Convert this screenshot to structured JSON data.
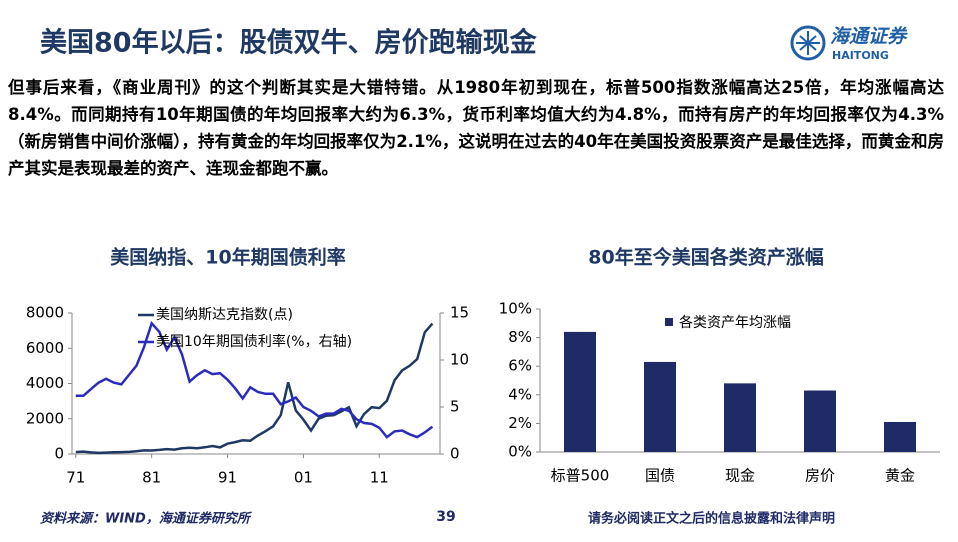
{
  "header": {
    "title": "美国80年以后：股债双牛、房价跑输现金",
    "logo": "海通证券",
    "logo_en": "HAITONG"
  },
  "body": "但事后来看，《商业周刊》的这个判断其实是大错特错。从1980年初到现在，标普500指数涨幅高达25倍，年均涨幅高达8.4%。而同期持有10年期国债的年均回报率大约为6.3%，货币利率均值大约为4.8%，而持有房产的年均回报率仅为4.3%（新房销售中间价涨幅），持有黄金的年均回报率仅为2.1%，这说明在过去的40年在美国投资股票资产是最佳选择，而黄金和房产其实是表现最差的资产、连现金都跑不赢。",
  "chart_data": [
    {
      "type": "line",
      "title": "美国纳指、10年期国债利率",
      "x": [
        1971,
        1972,
        1973,
        1974,
        1975,
        1976,
        1977,
        1978,
        1979,
        1980,
        1981,
        1982,
        1983,
        1984,
        1985,
        1986,
        1987,
        1988,
        1989,
        1990,
        1991,
        1992,
        1993,
        1994,
        1995,
        1996,
        1997,
        1998,
        1999,
        2000,
        2001,
        2002,
        2003,
        2004,
        2005,
        2006,
        2007,
        2008,
        2009,
        2010,
        2011,
        2012,
        2013,
        2014,
        2015,
        2016,
        2017,
        2018
      ],
      "series": [
        {
          "name": "美国纳斯达克指数(点)",
          "color": "#1f3864",
          "values": [
            114,
            134,
            92,
            60,
            78,
            98,
            105,
            118,
            151,
            202,
            196,
            232,
            279,
            247,
            325,
            349,
            330,
            381,
            454,
            374,
            586,
            677,
            777,
            752,
            1052,
            1291,
            1570,
            2193,
            4069,
            2471,
            1950,
            1336,
            2003,
            2175,
            2205,
            2415,
            2652,
            1577,
            2269,
            2653,
            2605,
            3020,
            4177,
            4736,
            5007,
            5383,
            6903,
            7400
          ]
        },
        {
          "name": "美国10年期国债利率(%，右轴)",
          "color": "#2b2bbd",
          "axis": "y2",
          "values": [
            6.2,
            6.2,
            6.9,
            7.6,
            8.0,
            7.6,
            7.4,
            8.4,
            9.4,
            11.4,
            13.9,
            13.0,
            11.1,
            12.4,
            10.6,
            7.7,
            8.4,
            8.9,
            8.5,
            8.6,
            7.9,
            7.0,
            5.9,
            7.1,
            6.6,
            6.4,
            6.4,
            5.3,
            5.6,
            6.0,
            5.0,
            4.6,
            4.0,
            4.3,
            4.3,
            4.8,
            4.6,
            3.7,
            3.3,
            3.2,
            2.8,
            1.8,
            2.4,
            2.5,
            2.1,
            1.8,
            2.3,
            2.9
          ]
        }
      ],
      "xlim": [
        1970.5,
        2019
      ],
      "xticks": [
        {
          "value": 1971,
          "label": "71"
        },
        {
          "value": 1981,
          "label": "81"
        },
        {
          "value": 1991,
          "label": "91"
        },
        {
          "value": 2001,
          "label": "01"
        },
        {
          "value": 2011,
          "label": "11"
        }
      ],
      "ylim": [
        0,
        8000
      ],
      "yticks": [
        0,
        2000,
        4000,
        6000,
        8000
      ],
      "y2lim": [
        0,
        15
      ],
      "y2ticks": [
        0,
        5,
        10,
        15
      ]
    },
    {
      "type": "bar",
      "title": "80年至今美国各类资产涨幅",
      "categories": [
        "标普500",
        "国债",
        "现金",
        "房价",
        "黄金"
      ],
      "series": [
        {
          "name": "各类资产年均涨幅",
          "color": "#1f2a66",
          "values": [
            8.4,
            6.3,
            4.8,
            4.3,
            2.1
          ]
        }
      ],
      "ylim": [
        0,
        10
      ],
      "yticks": [
        {
          "value": 0,
          "label": "0%"
        },
        {
          "value": 2,
          "label": "2%"
        },
        {
          "value": 4,
          "label": "4%"
        },
        {
          "value": 6,
          "label": "6%"
        },
        {
          "value": 8,
          "label": "8%"
        },
        {
          "value": 10,
          "label": "10%"
        }
      ]
    }
  ],
  "footer": {
    "source": "资料来源：WIND，海通证券研究所",
    "page": "39",
    "disclaimer": "请务必阅读正文之后的信息披露和法律声明"
  }
}
